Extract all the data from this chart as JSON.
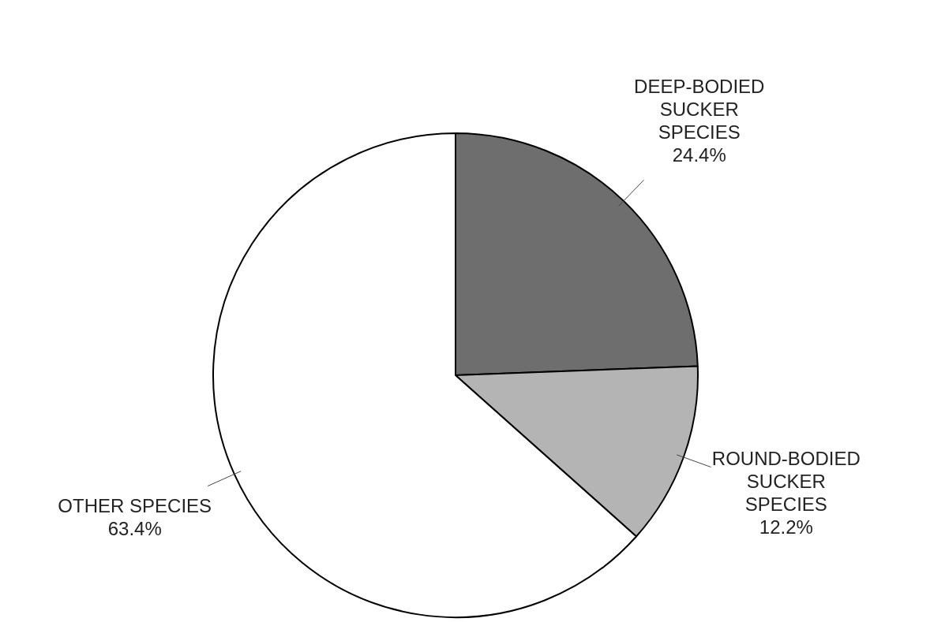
{
  "chart_data": {
    "type": "pie",
    "categories": [
      "DEEP-BODIED\nSUCKER\nSPECIES",
      "ROUND-BODIED\nSUCKER\nSPECIES",
      "OTHER SPECIES"
    ],
    "values": [
      24.4,
      12.2,
      63.4
    ],
    "value_labels": [
      "24.4%",
      "12.2%",
      "63.4%"
    ],
    "colors": [
      "#6e6e6e",
      "#b4b4b4",
      "#ffffff"
    ],
    "legend": false
  }
}
